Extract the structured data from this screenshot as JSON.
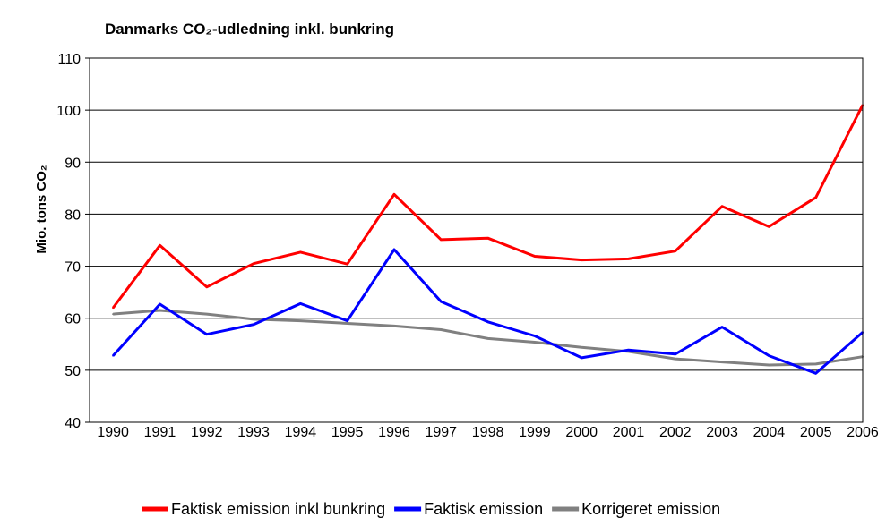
{
  "chart_data": {
    "type": "line",
    "title": "Danmarks CO₂-udledning inkl. bunkring",
    "ylabel": "Mio. tons CO₂",
    "xlabel": "",
    "ylim": [
      40,
      110
    ],
    "yticks": [
      40,
      50,
      60,
      70,
      80,
      90,
      100,
      110
    ],
    "grid": "horizontal",
    "legend_position": "bottom",
    "categories": [
      "1990",
      "1991",
      "1992",
      "1993",
      "1994",
      "1995",
      "1996",
      "1997",
      "1998",
      "1999",
      "2000",
      "2001",
      "2002",
      "2003",
      "2004",
      "2005",
      "2006"
    ],
    "series": [
      {
        "name": "Faktisk emission inkl bunkring",
        "color": "#ff0000",
        "values": [
          62.0,
          74.0,
          66.0,
          70.5,
          72.7,
          70.4,
          83.8,
          75.1,
          75.4,
          71.9,
          71.2,
          71.4,
          72.9,
          81.5,
          77.6,
          83.2,
          101.0
        ]
      },
      {
        "name": "Faktisk emission",
        "color": "#0000ff",
        "values": [
          52.8,
          62.7,
          56.9,
          58.8,
          62.8,
          59.5,
          73.2,
          63.2,
          59.3,
          56.6,
          52.4,
          53.9,
          53.1,
          58.3,
          52.8,
          49.4,
          57.3
        ]
      },
      {
        "name": "Korrigeret emission",
        "color": "#808080",
        "values": [
          60.8,
          61.5,
          60.8,
          59.8,
          59.5,
          59.0,
          58.5,
          57.8,
          56.1,
          55.4,
          54.4,
          53.6,
          52.2,
          51.6,
          51.0,
          51.2,
          52.6
        ]
      }
    ]
  }
}
